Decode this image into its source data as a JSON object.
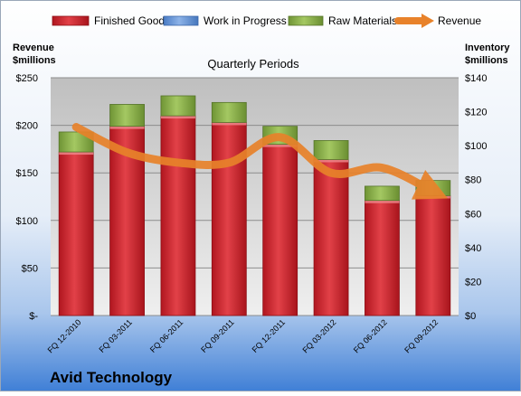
{
  "chart_data": {
    "type": "bar",
    "title": "Quarterly Periods",
    "company": "Avid Technology",
    "left_axis": {
      "label_line1": "Revenue",
      "label_line2": "$millions",
      "ylim": [
        0,
        250
      ],
      "tick_labels": [
        "$-",
        "$50",
        "$100",
        "$150",
        "$200",
        "$250"
      ],
      "tick_values": [
        0,
        50,
        100,
        150,
        200,
        250
      ]
    },
    "right_axis": {
      "label_line1": "Inventory",
      "label_line2": "$millions",
      "ylim": [
        0,
        140
      ],
      "tick_labels": [
        "$0",
        "$20",
        "$40",
        "$60",
        "$80",
        "$100",
        "$120",
        "$140"
      ],
      "tick_values": [
        0,
        20,
        40,
        60,
        80,
        100,
        120,
        140
      ]
    },
    "categories": [
      "FQ 12-2010",
      "FQ 03-2011",
      "FQ 06-2011",
      "FQ 09-2011",
      "FQ 12-2011",
      "FQ 03-2012",
      "FQ 06-2012",
      "FQ 09-2012"
    ],
    "series": [
      {
        "name": "Finished Goods",
        "axis": "left",
        "stack": true,
        "color": "#c8202a",
        "values": [
          172,
          199,
          210,
          203,
          180,
          164,
          121,
          126
        ]
      },
      {
        "name": "Work in Progress",
        "axis": "left",
        "stack": true,
        "color": "#5b8fd6",
        "values": [
          0,
          0,
          0,
          0,
          0,
          0,
          0,
          0
        ]
      },
      {
        "name": "Raw Materials",
        "axis": "left",
        "stack": true,
        "color": "#8ab04a",
        "values": [
          21,
          23,
          21,
          21,
          19,
          20,
          15,
          16
        ]
      },
      {
        "name": "Revenue",
        "axis": "right",
        "type": "line",
        "color": "#e8822a",
        "values": [
          111,
          96,
          90,
          90,
          105,
          84,
          87,
          73
        ]
      }
    ],
    "legend_position": "top",
    "grid": true
  }
}
